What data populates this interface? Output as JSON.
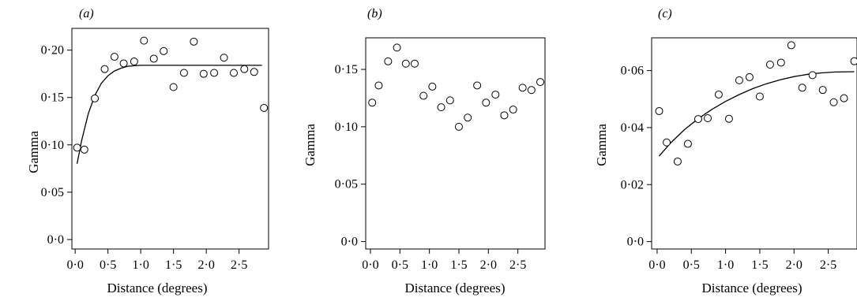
{
  "chart_data": [
    {
      "type": "scatter",
      "panel_label": "(a)",
      "xlabel": "Distance (degrees)",
      "ylabel": "Gamma",
      "xlim": [
        -0.05,
        2.95
      ],
      "ylim": [
        -0.01,
        0.223
      ],
      "xticks": [
        0,
        0.5,
        1.0,
        1.5,
        2.0,
        2.5
      ],
      "xtick_labels": [
        "0·0",
        "0·5",
        "1·0",
        "1·5",
        "2·0",
        "2·5"
      ],
      "yticks": [
        0,
        0.05,
        0.1,
        0.15,
        0.2
      ],
      "ytick_labels": [
        "0·0",
        "0·05",
        "0·10",
        "0·15",
        "0·20"
      ],
      "points": [
        [
          0.03,
          0.097
        ],
        [
          0.14,
          0.095
        ],
        [
          0.3,
          0.149
        ],
        [
          0.45,
          0.18
        ],
        [
          0.6,
          0.193
        ],
        [
          0.74,
          0.186
        ],
        [
          0.9,
          0.188
        ],
        [
          1.05,
          0.21
        ],
        [
          1.2,
          0.191
        ],
        [
          1.35,
          0.199
        ],
        [
          1.5,
          0.161
        ],
        [
          1.66,
          0.176
        ],
        [
          1.81,
          0.209
        ],
        [
          1.96,
          0.175
        ],
        [
          2.12,
          0.176
        ],
        [
          2.27,
          0.192
        ],
        [
          2.42,
          0.176
        ],
        [
          2.58,
          0.18
        ],
        [
          2.73,
          0.177
        ],
        [
          2.88,
          0.139
        ]
      ],
      "fit": [
        [
          0.03,
          0.08
        ],
        [
          0.1,
          0.105
        ],
        [
          0.2,
          0.133
        ],
        [
          0.3,
          0.152
        ],
        [
          0.4,
          0.165
        ],
        [
          0.5,
          0.173
        ],
        [
          0.6,
          0.178
        ],
        [
          0.7,
          0.181
        ],
        [
          0.8,
          0.183
        ],
        [
          1.0,
          0.184
        ],
        [
          1.3,
          0.184
        ],
        [
          1.8,
          0.184
        ],
        [
          2.3,
          0.184
        ],
        [
          2.85,
          0.184
        ]
      ]
    },
    {
      "type": "scatter",
      "panel_label": "(b)",
      "xlabel": "Distance (degrees)",
      "ylabel": "Gamma",
      "xlim": [
        -0.08,
        2.96
      ],
      "ylim": [
        -0.0065,
        0.1775
      ],
      "xticks": [
        0,
        0.5,
        1.0,
        1.5,
        2.0,
        2.5
      ],
      "xtick_labels": [
        "0·0",
        "0·5",
        "1·0",
        "1·5",
        "2·0",
        "2·5"
      ],
      "yticks": [
        0,
        0.05,
        0.1,
        0.15
      ],
      "ytick_labels": [
        "0·0",
        "0·05",
        "0·10",
        "0·15"
      ],
      "points": [
        [
          0.03,
          0.121
        ],
        [
          0.14,
          0.136
        ],
        [
          0.3,
          0.157
        ],
        [
          0.45,
          0.169
        ],
        [
          0.6,
          0.155
        ],
        [
          0.75,
          0.155
        ],
        [
          0.9,
          0.127
        ],
        [
          1.05,
          0.135
        ],
        [
          1.2,
          0.117
        ],
        [
          1.35,
          0.123
        ],
        [
          1.5,
          0.1
        ],
        [
          1.65,
          0.108
        ],
        [
          1.81,
          0.136
        ],
        [
          1.96,
          0.121
        ],
        [
          2.12,
          0.128
        ],
        [
          2.27,
          0.11
        ],
        [
          2.42,
          0.115
        ],
        [
          2.58,
          0.134
        ],
        [
          2.73,
          0.132
        ],
        [
          2.88,
          0.139
        ]
      ],
      "fit": []
    },
    {
      "type": "scatter",
      "panel_label": "(c)",
      "xlabel": "Distance (degrees)",
      "ylabel": "Gamma",
      "xlim": [
        -0.08,
        2.92
      ],
      "ylim": [
        -0.0026,
        0.0715
      ],
      "xticks": [
        0,
        0.5,
        1.0,
        1.5,
        2.0,
        2.5
      ],
      "xtick_labels": [
        "0·0",
        "0·5",
        "1·0",
        "1·5",
        "2·0",
        "2·5"
      ],
      "yticks": [
        0,
        0.02,
        0.04,
        0.06
      ],
      "ytick_labels": [
        "0·0",
        "0·02",
        "0·04",
        "0·06"
      ],
      "points": [
        [
          0.03,
          0.0458
        ],
        [
          0.14,
          0.0348
        ],
        [
          0.3,
          0.0281
        ],
        [
          0.45,
          0.0343
        ],
        [
          0.6,
          0.043
        ],
        [
          0.74,
          0.0433
        ],
        [
          0.9,
          0.0516
        ],
        [
          1.05,
          0.0431
        ],
        [
          1.2,
          0.0566
        ],
        [
          1.35,
          0.0577
        ],
        [
          1.5,
          0.0509
        ],
        [
          1.65,
          0.0621
        ],
        [
          1.81,
          0.0628
        ],
        [
          1.96,
          0.0689
        ],
        [
          2.12,
          0.054
        ],
        [
          2.27,
          0.0584
        ],
        [
          2.42,
          0.0532
        ],
        [
          2.58,
          0.0489
        ],
        [
          2.73,
          0.0503
        ],
        [
          2.88,
          0.0633
        ]
      ],
      "fit": [
        [
          0.03,
          0.03
        ],
        [
          0.2,
          0.0347
        ],
        [
          0.4,
          0.0393
        ],
        [
          0.6,
          0.0431
        ],
        [
          0.8,
          0.0464
        ],
        [
          1.0,
          0.0492
        ],
        [
          1.2,
          0.0516
        ],
        [
          1.4,
          0.0537
        ],
        [
          1.6,
          0.0554
        ],
        [
          1.8,
          0.0568
        ],
        [
          2.0,
          0.0579
        ],
        [
          2.2,
          0.0587
        ],
        [
          2.4,
          0.0592
        ],
        [
          2.6,
          0.0595
        ],
        [
          2.88,
          0.0596
        ]
      ]
    }
  ]
}
